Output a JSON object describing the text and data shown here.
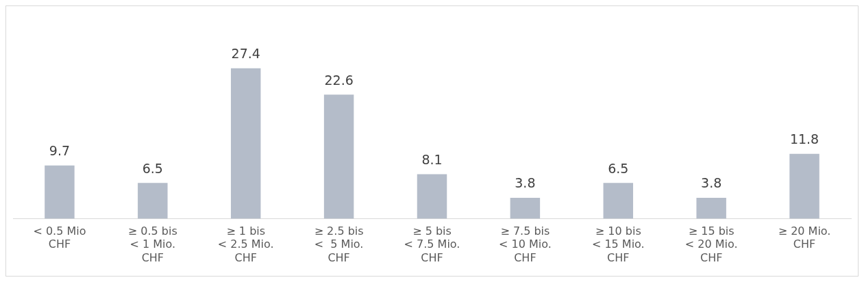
{
  "chart_data": {
    "type": "bar",
    "categories": [
      "< 0.5 Mio\nCHF",
      "≥ 0.5 bis\n< 1 Mio.\nCHF",
      "≥ 1 bis\n< 2.5 Mio.\nCHF",
      "≥ 2.5 bis\n<  5 Mio.\nCHF",
      "≥ 5 bis\n< 7.5 Mio.\nCHF",
      "≥ 7.5 bis\n< 10 Mio.\nCHF",
      "≥ 10 bis\n< 15 Mio.\nCHF",
      "≥ 15 bis\n< 20 Mio.\nCHF",
      "≥ 20 Mio.\nCHF"
    ],
    "values": [
      9.7,
      6.5,
      27.4,
      22.6,
      8.1,
      3.8,
      6.5,
      3.8,
      11.8
    ],
    "color": "#b4bcc9",
    "data_labels": true,
    "grid": false,
    "legend": false
  }
}
